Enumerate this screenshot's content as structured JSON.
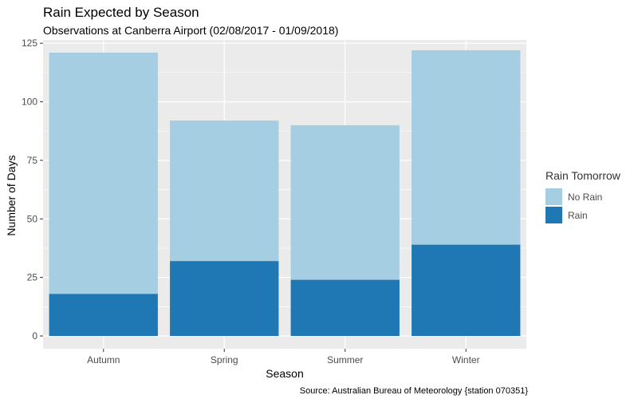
{
  "chart_data": {
    "type": "bar",
    "stacked": true,
    "title": "Rain Expected by Season",
    "subtitle": "Observations at Canberra Airport (02/08/2017 - 01/09/2018)",
    "xlabel": "Season",
    "ylabel": "Number of Days",
    "caption": "Source: Australian Bureau of Meteorology {station 070351}",
    "categories": [
      "Autumn",
      "Spring",
      "Summer",
      "Winter"
    ],
    "series": [
      {
        "name": "No Rain",
        "values": [
          103,
          60,
          66,
          83
        ],
        "color": "#a6cee3"
      },
      {
        "name": "Rain",
        "values": [
          18,
          32,
          24,
          39
        ],
        "color": "#1f78b4"
      }
    ],
    "yticks": [
      0,
      25,
      50,
      75,
      100,
      125
    ],
    "ylim": [
      0,
      127
    ],
    "grid": true,
    "legend": {
      "title": "Rain Tomorrow",
      "position": "right"
    },
    "panel_background": "#ebebeb"
  }
}
